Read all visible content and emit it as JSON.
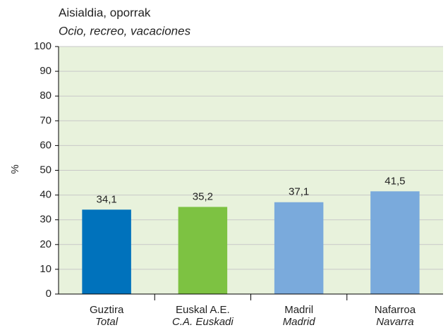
{
  "chart_data": {
    "type": "bar",
    "title": "Aisialdia, oporrak",
    "subtitle": "Ocio, recreo, vacaciones",
    "y_label": "%",
    "categories": [
      "Guztira",
      "Euskal A.E.",
      "Madril",
      "Nafarroa"
    ],
    "category_subtitles": [
      "Total",
      "C.A. Euskadi",
      "Madrid",
      "Navarra"
    ],
    "values": [
      34.1,
      35.2,
      37.1,
      41.5
    ],
    "value_labels": [
      "34,1",
      "35,2",
      "37,1",
      "41,5"
    ],
    "colors": [
      "#0072bc",
      "#7dc242",
      "#7aaadc",
      "#7aaadc"
    ],
    "ylim": [
      0,
      100
    ],
    "yticks": [
      0,
      10,
      20,
      30,
      40,
      50,
      60,
      70,
      80,
      90,
      100
    ],
    "grid": true
  }
}
